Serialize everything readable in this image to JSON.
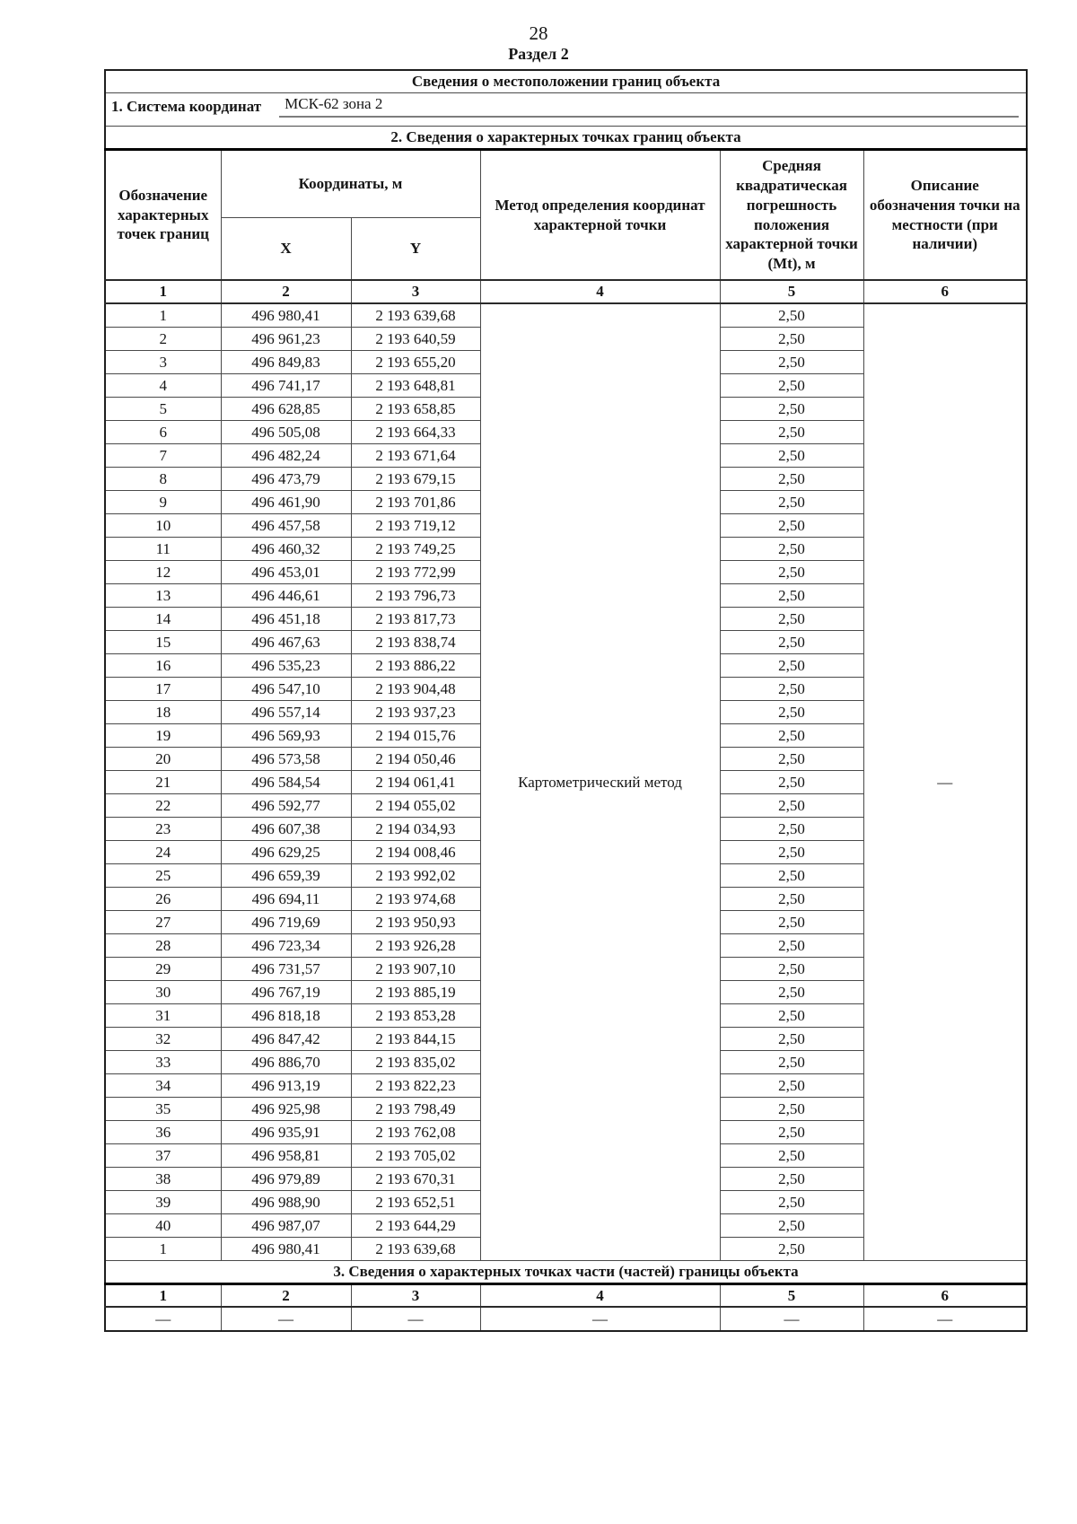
{
  "page": {
    "number": "28",
    "section_label": "Раздел 2"
  },
  "table": {
    "title": "Сведения о местоположении границ объекта",
    "coord_system_label": "1. Система координат",
    "coord_system_value": "МСК-62 зона 2",
    "section2_title": "2. Сведения о характерных точках границ объекта",
    "headers": {
      "point_designation": "Обозначение характерных точек границ",
      "coordinates_group": "Координаты, м",
      "x": "X",
      "y": "Y",
      "method": "Метод определения координат характерной точки",
      "mt": "Средняя квадратическая погрешность положения характерной точки (Mt), м",
      "description": "Описание обозначения точки на местности (при наличии)"
    },
    "column_numbers": [
      "1",
      "2",
      "3",
      "4",
      "5",
      "6"
    ],
    "method_value": "Картометрический метод",
    "description_value": "—",
    "rows": [
      {
        "n": "1",
        "x": "496 980,41",
        "y": "2 193 639,68",
        "mt": "2,50"
      },
      {
        "n": "2",
        "x": "496 961,23",
        "y": "2 193 640,59",
        "mt": "2,50"
      },
      {
        "n": "3",
        "x": "496 849,83",
        "y": "2 193 655,20",
        "mt": "2,50"
      },
      {
        "n": "4",
        "x": "496 741,17",
        "y": "2 193 648,81",
        "mt": "2,50"
      },
      {
        "n": "5",
        "x": "496 628,85",
        "y": "2 193 658,85",
        "mt": "2,50"
      },
      {
        "n": "6",
        "x": "496 505,08",
        "y": "2 193 664,33",
        "mt": "2,50"
      },
      {
        "n": "7",
        "x": "496 482,24",
        "y": "2 193 671,64",
        "mt": "2,50"
      },
      {
        "n": "8",
        "x": "496 473,79",
        "y": "2 193 679,15",
        "mt": "2,50"
      },
      {
        "n": "9",
        "x": "496 461,90",
        "y": "2 193 701,86",
        "mt": "2,50"
      },
      {
        "n": "10",
        "x": "496 457,58",
        "y": "2 193 719,12",
        "mt": "2,50"
      },
      {
        "n": "11",
        "x": "496 460,32",
        "y": "2 193 749,25",
        "mt": "2,50"
      },
      {
        "n": "12",
        "x": "496 453,01",
        "y": "2 193 772,99",
        "mt": "2,50"
      },
      {
        "n": "13",
        "x": "496 446,61",
        "y": "2 193 796,73",
        "mt": "2,50"
      },
      {
        "n": "14",
        "x": "496 451,18",
        "y": "2 193 817,73",
        "mt": "2,50"
      },
      {
        "n": "15",
        "x": "496 467,63",
        "y": "2 193 838,74",
        "mt": "2,50"
      },
      {
        "n": "16",
        "x": "496 535,23",
        "y": "2 193 886,22",
        "mt": "2,50"
      },
      {
        "n": "17",
        "x": "496 547,10",
        "y": "2 193 904,48",
        "mt": "2,50"
      },
      {
        "n": "18",
        "x": "496 557,14",
        "y": "2 193 937,23",
        "mt": "2,50"
      },
      {
        "n": "19",
        "x": "496 569,93",
        "y": "2 194 015,76",
        "mt": "2,50"
      },
      {
        "n": "20",
        "x": "496 573,58",
        "y": "2 194 050,46",
        "mt": "2,50"
      },
      {
        "n": "21",
        "x": "496 584,54",
        "y": "2 194 061,41",
        "mt": "2,50"
      },
      {
        "n": "22",
        "x": "496 592,77",
        "y": "2 194 055,02",
        "mt": "2,50"
      },
      {
        "n": "23",
        "x": "496 607,38",
        "y": "2 194 034,93",
        "mt": "2,50"
      },
      {
        "n": "24",
        "x": "496 629,25",
        "y": "2 194 008,46",
        "mt": "2,50"
      },
      {
        "n": "25",
        "x": "496 659,39",
        "y": "2 193 992,02",
        "mt": "2,50"
      },
      {
        "n": "26",
        "x": "496 694,11",
        "y": "2 193 974,68",
        "mt": "2,50"
      },
      {
        "n": "27",
        "x": "496 719,69",
        "y": "2 193 950,93",
        "mt": "2,50"
      },
      {
        "n": "28",
        "x": "496 723,34",
        "y": "2 193 926,28",
        "mt": "2,50"
      },
      {
        "n": "29",
        "x": "496 731,57",
        "y": "2 193 907,10",
        "mt": "2,50"
      },
      {
        "n": "30",
        "x": "496 767,19",
        "y": "2 193 885,19",
        "mt": "2,50"
      },
      {
        "n": "31",
        "x": "496 818,18",
        "y": "2 193 853,28",
        "mt": "2,50"
      },
      {
        "n": "32",
        "x": "496 847,42",
        "y": "2 193 844,15",
        "mt": "2,50"
      },
      {
        "n": "33",
        "x": "496 886,70",
        "y": "2 193 835,02",
        "mt": "2,50"
      },
      {
        "n": "34",
        "x": "496 913,19",
        "y": "2 193 822,23",
        "mt": "2,50"
      },
      {
        "n": "35",
        "x": "496 925,98",
        "y": "2 193 798,49",
        "mt": "2,50"
      },
      {
        "n": "36",
        "x": "496 935,91",
        "y": "2 193 762,08",
        "mt": "2,50"
      },
      {
        "n": "37",
        "x": "496 958,81",
        "y": "2 193 705,02",
        "mt": "2,50"
      },
      {
        "n": "38",
        "x": "496 979,89",
        "y": "2 193 670,31",
        "mt": "2,50"
      },
      {
        "n": "39",
        "x": "496 988,90",
        "y": "2 193 652,51",
        "mt": "2,50"
      },
      {
        "n": "40",
        "x": "496 987,07",
        "y": "2 193 644,29",
        "mt": "2,50"
      },
      {
        "n": "1",
        "x": "496 980,41",
        "y": "2 193 639,68",
        "mt": "2,50"
      }
    ],
    "section3": {
      "title": "3. Сведения о характерных точках части (частей) границы объекта",
      "column_numbers": [
        "1",
        "2",
        "3",
        "4",
        "5",
        "6"
      ],
      "empty_row": [
        "—",
        "—",
        "—",
        "—",
        "—",
        "—"
      ]
    }
  }
}
